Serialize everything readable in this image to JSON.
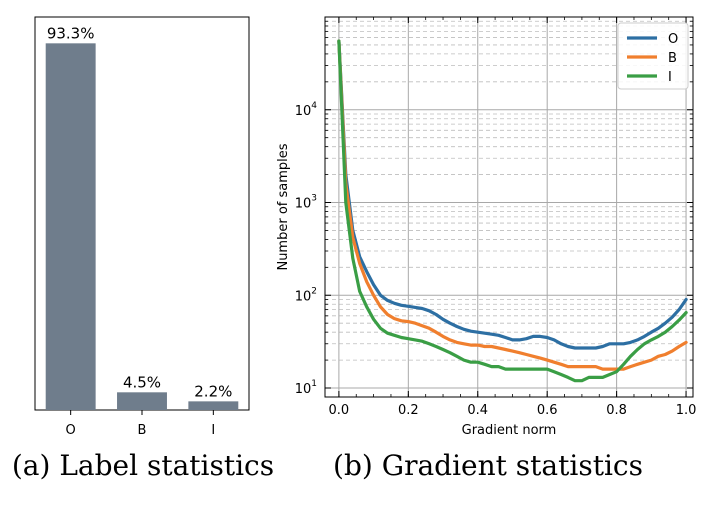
{
  "captions": {
    "a": "(a) Label statistics",
    "b": "(b) Gradient statistics"
  },
  "colors": {
    "bar": "#6f7d8c",
    "O": "#2d6fa3",
    "B": "#f07f2e",
    "I": "#3a9e45"
  },
  "chart_data": [
    {
      "type": "bar",
      "categories": [
        "O",
        "B",
        "I"
      ],
      "values": [
        93.3,
        4.5,
        2.2
      ],
      "value_labels": [
        "93.3%",
        "4.5%",
        "2.2%"
      ],
      "ylim": [
        0,
        100
      ],
      "grid": false
    },
    {
      "type": "line",
      "xlabel": "Gradient norm",
      "ylabel": "Number of samples",
      "xlim": [
        -0.04,
        1.02
      ],
      "ylim": [
        8,
        100000
      ],
      "yscale": "log",
      "x_ticks": [
        "0.0",
        "0.2",
        "0.4",
        "0.6",
        "0.8",
        "1.0"
      ],
      "y_ticks": [
        {
          "base": "10",
          "exp": "1",
          "value": 10
        },
        {
          "base": "10",
          "exp": "2",
          "value": 100
        },
        {
          "base": "10",
          "exp": "3",
          "value": 1000
        },
        {
          "base": "10",
          "exp": "4",
          "value": 10000
        }
      ],
      "grid": true,
      "legend": "top-right",
      "series": [
        {
          "name": "O",
          "x": [
            0,
            0.02,
            0.04,
            0.06,
            0.08,
            0.1,
            0.12,
            0.14,
            0.16,
            0.18,
            0.2,
            0.22,
            0.24,
            0.26,
            0.28,
            0.3,
            0.32,
            0.34,
            0.36,
            0.38,
            0.4,
            0.42,
            0.44,
            0.46,
            0.48,
            0.5,
            0.52,
            0.54,
            0.56,
            0.58,
            0.6,
            0.62,
            0.64,
            0.66,
            0.68,
            0.7,
            0.72,
            0.74,
            0.76,
            0.78,
            0.8,
            0.82,
            0.84,
            0.86,
            0.88,
            0.9,
            0.92,
            0.94,
            0.96,
            0.98,
            1.0
          ],
          "y": [
            55000,
            2000,
            500,
            260,
            180,
            130,
            100,
            88,
            82,
            78,
            76,
            74,
            72,
            68,
            62,
            55,
            50,
            46,
            43,
            41,
            40,
            39,
            38,
            37,
            35,
            33,
            33,
            34,
            36,
            36,
            35,
            33,
            30,
            28,
            27,
            27,
            27,
            27,
            28,
            30,
            30,
            30,
            31,
            33,
            36,
            40,
            44,
            50,
            58,
            70,
            90
          ]
        },
        {
          "name": "B",
          "x": [
            0,
            0.02,
            0.04,
            0.06,
            0.08,
            0.1,
            0.12,
            0.14,
            0.16,
            0.18,
            0.2,
            0.22,
            0.24,
            0.26,
            0.28,
            0.3,
            0.32,
            0.34,
            0.36,
            0.38,
            0.4,
            0.42,
            0.44,
            0.46,
            0.48,
            0.5,
            0.52,
            0.54,
            0.56,
            0.58,
            0.6,
            0.62,
            0.64,
            0.66,
            0.68,
            0.7,
            0.72,
            0.74,
            0.76,
            0.78,
            0.8,
            0.82,
            0.84,
            0.86,
            0.88,
            0.9,
            0.92,
            0.94,
            0.96,
            0.98,
            1.0
          ],
          "y": [
            55000,
            1600,
            420,
            220,
            140,
            100,
            75,
            62,
            56,
            53,
            52,
            50,
            47,
            44,
            40,
            36,
            33,
            31,
            30,
            29,
            29,
            28,
            28,
            27,
            26,
            25,
            24,
            23,
            22,
            21,
            20,
            19,
            18,
            17,
            17,
            17,
            17,
            17,
            16,
            16,
            16,
            16,
            17,
            18,
            19,
            20,
            22,
            23,
            25,
            28,
            31
          ]
        },
        {
          "name": "I",
          "x": [
            0,
            0.02,
            0.04,
            0.06,
            0.08,
            0.1,
            0.12,
            0.14,
            0.16,
            0.18,
            0.2,
            0.22,
            0.24,
            0.26,
            0.28,
            0.3,
            0.32,
            0.34,
            0.36,
            0.38,
            0.4,
            0.42,
            0.44,
            0.46,
            0.48,
            0.5,
            0.52,
            0.54,
            0.56,
            0.58,
            0.6,
            0.62,
            0.64,
            0.66,
            0.68,
            0.7,
            0.72,
            0.74,
            0.76,
            0.78,
            0.8,
            0.82,
            0.84,
            0.86,
            0.88,
            0.9,
            0.92,
            0.94,
            0.96,
            0.98,
            1.0
          ],
          "y": [
            55000,
            1000,
            250,
            110,
            75,
            55,
            44,
            39,
            37,
            35,
            34,
            33,
            32,
            30,
            28,
            26,
            24,
            22,
            20,
            19,
            19,
            18,
            17,
            17,
            16,
            16,
            16,
            16,
            16,
            16,
            16,
            15,
            14,
            13,
            12,
            12,
            13,
            13,
            13,
            14,
            15,
            18,
            22,
            26,
            30,
            33,
            36,
            40,
            46,
            54,
            65
          ]
        }
      ]
    }
  ]
}
